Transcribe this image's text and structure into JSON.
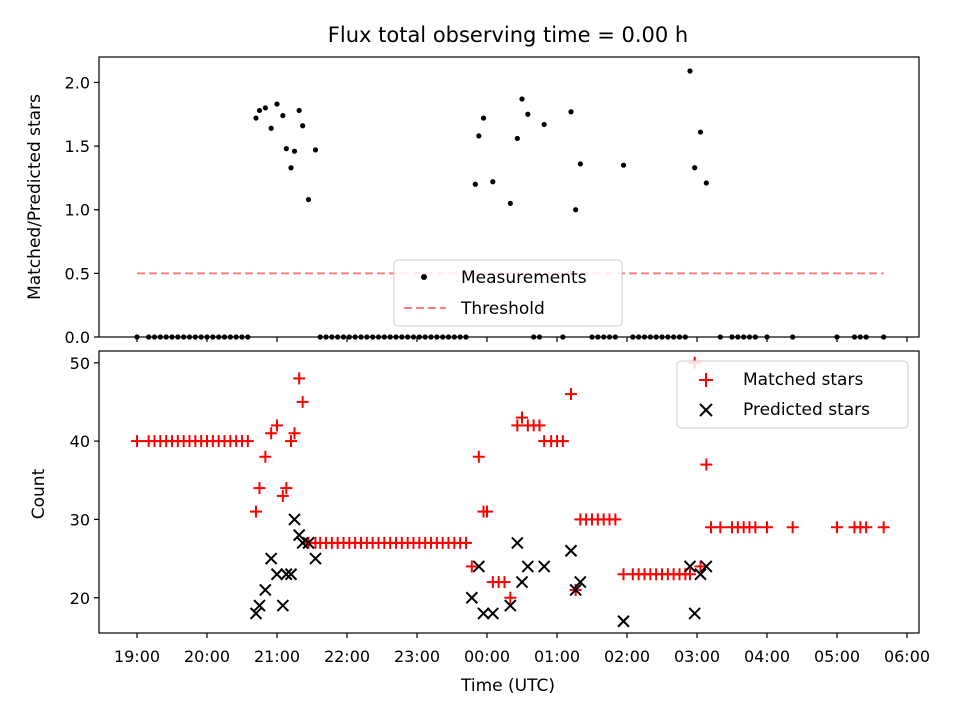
{
  "chart_data": [
    {
      "type": "scatter",
      "title": "Flux total observing time = 0.00 h",
      "xlabel": "",
      "ylabel": "Matched/Predicted stars",
      "ylim": [
        0,
        2.2
      ],
      "yticks": [
        "0.0",
        "0.5",
        "1.0",
        "1.5",
        "2.0"
      ],
      "legend_position": "bottom-center",
      "series": [
        {
          "name": "Measurements",
          "kind": "points",
          "color": "#000000",
          "x": [
            "20:42",
            "20:45",
            "20:50",
            "20:55",
            "21:00",
            "21:05",
            "21:08",
            "21:12",
            "21:15",
            "21:19",
            "21:22",
            "21:27",
            "21:33",
            "23:50",
            "23:53",
            "23:57",
            "00:05",
            "00:20",
            "00:26",
            "00:30",
            "00:35",
            "00:49",
            "01:12",
            "01:16",
            "01:20",
            "01:57",
            "02:54",
            "02:58",
            "03:03",
            "03:08"
          ],
          "y": [
            1.72,
            1.78,
            1.8,
            1.64,
            1.83,
            1.74,
            1.48,
            1.33,
            1.46,
            1.78,
            1.66,
            1.08,
            1.47,
            1.2,
            1.58,
            1.72,
            1.22,
            1.05,
            1.56,
            1.87,
            1.75,
            1.67,
            1.77,
            1.0,
            1.36,
            1.35,
            2.09,
            1.33,
            1.61,
            1.21
          ]
        },
        {
          "name": "Measurements",
          "kind": "points",
          "color": "#000000",
          "x": [
            "19:00",
            "19:10",
            "19:15",
            "19:20",
            "19:25",
            "19:30",
            "19:35",
            "19:40",
            "19:45",
            "19:50",
            "19:55",
            "20:00",
            "20:05",
            "20:10",
            "20:15",
            "20:20",
            "20:25",
            "20:30",
            "20:35",
            "21:37",
            "21:42",
            "21:47",
            "21:52",
            "21:57",
            "22:02",
            "22:07",
            "22:12",
            "22:17",
            "22:22",
            "22:27",
            "22:32",
            "22:37",
            "22:42",
            "22:47",
            "22:52",
            "22:57",
            "23:02",
            "23:07",
            "23:12",
            "23:17",
            "23:22",
            "23:27",
            "23:32",
            "23:37",
            "23:42",
            "00:40",
            "00:45",
            "01:05",
            "01:30",
            "01:35",
            "01:40",
            "01:45",
            "01:50",
            "02:05",
            "02:10",
            "02:15",
            "02:20",
            "02:25",
            "02:30",
            "02:35",
            "02:40",
            "02:45",
            "02:50",
            "03:20",
            "03:30",
            "03:35",
            "03:40",
            "03:45",
            "03:50",
            "04:00",
            "04:22",
            "05:00",
            "05:15",
            "05:20",
            "05:25",
            "05:40"
          ],
          "y": [
            0,
            0,
            0,
            0,
            0,
            0,
            0,
            0,
            0,
            0,
            0,
            0,
            0,
            0,
            0,
            0,
            0,
            0,
            0,
            0,
            0,
            0,
            0,
            0,
            0,
            0,
            0,
            0,
            0,
            0,
            0,
            0,
            0,
            0,
            0,
            0,
            0,
            0,
            0,
            0,
            0,
            0,
            0,
            0,
            0,
            0,
            0,
            0,
            0,
            0,
            0,
            0,
            0,
            0,
            0,
            0,
            0,
            0,
            0,
            0,
            0,
            0,
            0,
            0,
            0,
            0,
            0,
            0,
            0,
            0,
            0,
            0,
            0,
            0,
            0,
            0
          ]
        },
        {
          "name": "Threshold",
          "kind": "dashed-line",
          "color": "#ff7f7f",
          "x": [
            "19:00",
            "05:40"
          ],
          "y": [
            0.5,
            0.5
          ]
        }
      ]
    },
    {
      "type": "scatter",
      "title": "",
      "xlabel": "Time (UTC)",
      "ylabel": "Count",
      "ylim": [
        15.5,
        51.5
      ],
      "yticks": [
        "20",
        "30",
        "40",
        "50"
      ],
      "xticks": [
        "19:00",
        "20:00",
        "21:00",
        "22:00",
        "23:00",
        "00:00",
        "01:00",
        "02:00",
        "03:00",
        "04:00",
        "05:00",
        "06:00"
      ],
      "legend_position": "top-right",
      "series": [
        {
          "name": "Matched stars",
          "marker": "plus",
          "color": "#ff0000",
          "x": [
            "19:00",
            "19:10",
            "19:15",
            "19:20",
            "19:25",
            "19:30",
            "19:35",
            "19:40",
            "19:45",
            "19:50",
            "19:55",
            "20:00",
            "20:05",
            "20:10",
            "20:15",
            "20:20",
            "20:25",
            "20:30",
            "20:35",
            "20:42",
            "20:45",
            "20:50",
            "20:55",
            "21:00",
            "21:05",
            "21:08",
            "21:12",
            "21:15",
            "21:19",
            "21:22",
            "21:27",
            "21:33",
            "21:37",
            "21:42",
            "21:47",
            "21:52",
            "21:57",
            "22:02",
            "22:07",
            "22:12",
            "22:17",
            "22:22",
            "22:27",
            "22:32",
            "22:37",
            "22:42",
            "22:47",
            "22:52",
            "22:57",
            "23:02",
            "23:07",
            "23:12",
            "23:17",
            "23:22",
            "23:27",
            "23:32",
            "23:37",
            "23:42",
            "23:47",
            "23:53",
            "23:57",
            "00:00",
            "00:05",
            "00:10",
            "00:15",
            "00:20",
            "00:26",
            "00:30",
            "00:35",
            "00:40",
            "00:45",
            "00:49",
            "00:55",
            "01:00",
            "01:05",
            "01:12",
            "01:16",
            "01:20",
            "01:25",
            "01:30",
            "01:35",
            "01:40",
            "01:45",
            "01:50",
            "01:57",
            "02:05",
            "02:10",
            "02:15",
            "02:20",
            "02:25",
            "02:30",
            "02:35",
            "02:40",
            "02:45",
            "02:50",
            "02:54",
            "02:58",
            "03:03",
            "03:08",
            "03:12",
            "03:20",
            "03:30",
            "03:35",
            "03:40",
            "03:45",
            "03:50",
            "04:00",
            "04:22",
            "05:00",
            "05:15",
            "05:20",
            "05:25",
            "05:40"
          ],
          "y": [
            40,
            40,
            40,
            40,
            40,
            40,
            40,
            40,
            40,
            40,
            40,
            40,
            40,
            40,
            40,
            40,
            40,
            40,
            40,
            31,
            34,
            38,
            41,
            42,
            33,
            34,
            40,
            41,
            48,
            45,
            27,
            27,
            27,
            27,
            27,
            27,
            27,
            27,
            27,
            27,
            27,
            27,
            27,
            27,
            27,
            27,
            27,
            27,
            27,
            27,
            27,
            27,
            27,
            27,
            27,
            27,
            27,
            27,
            24,
            38,
            31,
            31,
            22,
            22,
            22,
            20,
            42,
            43,
            42,
            42,
            42,
            40,
            40,
            40,
            40,
            46,
            21,
            30,
            30,
            30,
            30,
            30,
            30,
            30,
            23,
            23,
            23,
            23,
            23,
            23,
            23,
            23,
            23,
            23,
            23,
            23,
            50,
            24,
            37,
            29,
            29,
            29,
            29,
            29,
            29,
            29,
            29,
            29,
            29,
            29,
            29,
            29,
            29
          ]
        },
        {
          "name": "Predicted stars",
          "marker": "x",
          "color": "#000000",
          "x": [
            "20:42",
            "20:45",
            "20:50",
            "20:55",
            "21:00",
            "21:05",
            "21:08",
            "21:12",
            "21:15",
            "21:19",
            "21:22",
            "21:27",
            "21:33",
            "23:47",
            "23:53",
            "23:57",
            "00:05",
            "00:20",
            "00:26",
            "00:30",
            "00:35",
            "00:49",
            "01:12",
            "01:16",
            "01:20",
            "01:57",
            "02:54",
            "02:58",
            "03:03",
            "03:08"
          ],
          "y": [
            18,
            19,
            21,
            25,
            23,
            19,
            23,
            23,
            30,
            28,
            27,
            27,
            25,
            20,
            24,
            18,
            18,
            19,
            27,
            22,
            24,
            24,
            26,
            21,
            22,
            17,
            24,
            18,
            23,
            24
          ]
        }
      ]
    }
  ]
}
